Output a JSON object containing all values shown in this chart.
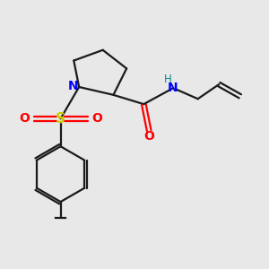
{
  "background_color": "#e8e8e8",
  "bond_color": "#1a1a1a",
  "N_color": "#0000ff",
  "O_color": "#ff0000",
  "S_color": "#cccc00",
  "H_color": "#008b8b",
  "figsize": [
    3.0,
    3.0
  ],
  "dpi": 100,
  "xlim": [
    0,
    10
  ],
  "ylim": [
    0,
    10
  ]
}
